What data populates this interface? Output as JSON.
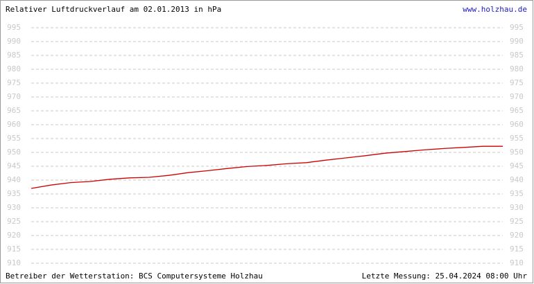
{
  "chart_data": {
    "type": "line",
    "title": "Relativer Luftdruckverlauf am 02.01.2013 in hPa",
    "source": "www.holzhau.de",
    "footer_left": "Betreiber der Wetterstation: BCS Computersysteme Holzhau",
    "footer_right": "Letzte Messung: 25.04.2024 08:00 Uhr",
    "values": [
      937.0,
      938.2,
      939.1,
      939.5,
      940.3,
      940.8,
      941.0,
      941.7,
      942.7,
      943.4,
      944.2,
      944.9,
      945.3,
      945.9,
      946.3,
      947.2,
      948.0,
      948.8,
      949.7,
      950.3,
      950.9,
      951.4,
      951.8,
      952.2,
      952.2
    ],
    "color": "#cc0000",
    "ylim": [
      910,
      995
    ],
    "yticks": [
      910,
      915,
      920,
      925,
      930,
      935,
      940,
      945,
      950,
      955,
      960,
      965,
      970,
      975,
      980,
      985,
      990,
      995
    ],
    "grid": true
  }
}
